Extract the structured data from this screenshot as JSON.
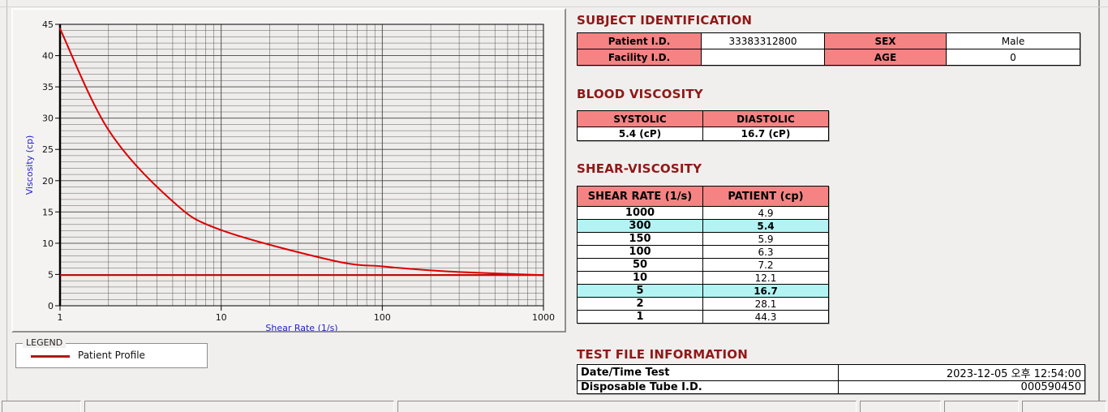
{
  "sections": {
    "subject": {
      "title": "SUBJECT IDENTIFICATION",
      "patient_id_label": "Patient I.D.",
      "patient_id_value": "33383312800",
      "sex_label": "SEX",
      "sex_value": "Male",
      "facility_id_label": "Facility I.D.",
      "facility_id_value": "",
      "age_label": "AGE",
      "age_value": "0"
    },
    "blood_viscosity": {
      "title": "BLOOD VISCOSITY",
      "headers": [
        "SYSTOLIC",
        "DIASTOLIC"
      ],
      "values": [
        "5.4 (cP)",
        "16.7 (cP)"
      ]
    },
    "shear_viscosity": {
      "title": "SHEAR-VISCOSITY",
      "headers": [
        "SHEAR RATE (1/s)",
        "PATIENT (cp)"
      ],
      "rows": [
        {
          "rate": "1000",
          "value": "4.9",
          "highlight": false
        },
        {
          "rate": "300",
          "value": "5.4",
          "highlight": true
        },
        {
          "rate": "150",
          "value": "5.9",
          "highlight": false
        },
        {
          "rate": "100",
          "value": "6.3",
          "highlight": false
        },
        {
          "rate": "50",
          "value": "7.2",
          "highlight": false
        },
        {
          "rate": "10",
          "value": "12.1",
          "highlight": false
        },
        {
          "rate": "5",
          "value": "16.7",
          "highlight": true
        },
        {
          "rate": "2",
          "value": "28.1",
          "highlight": false
        },
        {
          "rate": "1",
          "value": "44.3",
          "highlight": false
        }
      ]
    },
    "test_file": {
      "title": "TEST FILE INFORMATION",
      "rows": [
        {
          "label": "Date/Time Test",
          "value": "2023-12-05  오후 12:54:00"
        },
        {
          "label": "Disposable Tube I.D.",
          "value": "000590450"
        }
      ]
    }
  },
  "legend": {
    "box_title": "LEGEND",
    "series_label": "Patient Profile"
  },
  "chart_data": {
    "type": "line",
    "title": "",
    "xlabel": "Shear Rate (1/s)",
    "ylabel": "Viscosity (cp)",
    "x_scale": "log",
    "xlim": [
      1,
      1000
    ],
    "ylim": [
      0,
      45
    ],
    "x_ticks": [
      1,
      10,
      100,
      1000
    ],
    "y_major_ticks": [
      0,
      5,
      10,
      15,
      20,
      25,
      30,
      35,
      40,
      45
    ],
    "y_minor_step": 1,
    "grid": true,
    "x": [
      1,
      2,
      5,
      10,
      50,
      100,
      150,
      300,
      1000
    ],
    "series": [
      {
        "name": "Patient Profile",
        "values": [
          44.3,
          28.1,
          16.7,
          12.1,
          7.2,
          6.3,
          5.9,
          5.4,
          4.9
        ]
      }
    ],
    "reference_line_y": 4.9,
    "legend_position": "below-left"
  },
  "colors": {
    "title_red": "#901818",
    "table_header_pink": "#f58383",
    "highlight_cyan": "#b3f3f3",
    "series_red": "#dd0000",
    "legend_swatch_red": "#b01818",
    "axis_label_blue": "#2222cc",
    "grid_line": "#3c3c3c"
  }
}
